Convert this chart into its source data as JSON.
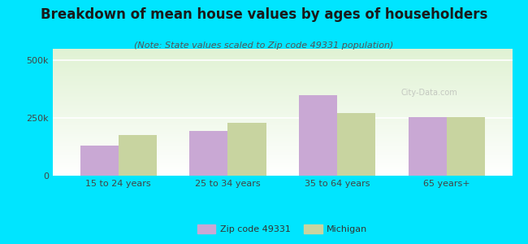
{
  "title": "Breakdown of mean house values by ages of householders",
  "subtitle": "(Note: State values scaled to Zip code 49331 population)",
  "categories": [
    "15 to 24 years",
    "25 to 34 years",
    "35 to 64 years",
    "65 years+"
  ],
  "zip_values": [
    130000,
    195000,
    350000,
    255000
  ],
  "state_values": [
    175000,
    230000,
    270000,
    255000
  ],
  "zip_color": "#c9a8d4",
  "state_color": "#c8d4a0",
  "background_color": "#00e5ff",
  "ylim": [
    0,
    550000
  ],
  "ytick_labels": [
    "0",
    "250k",
    "500k"
  ],
  "ytick_vals": [
    0,
    250000,
    500000
  ],
  "legend_zip_label": "Zip code 49331",
  "legend_state_label": "Michigan",
  "bar_width": 0.35,
  "title_fontsize": 12,
  "subtitle_fontsize": 8,
  "axis_label_fontsize": 8,
  "legend_fontsize": 8
}
